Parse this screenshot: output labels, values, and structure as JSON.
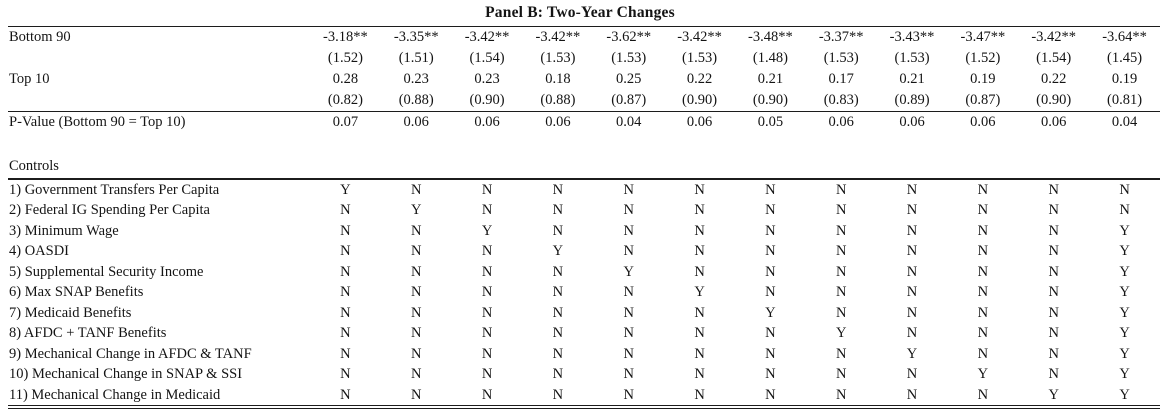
{
  "title": "Panel B: Two-Year Changes",
  "text_color": "#141414",
  "background_color": "#ffffff",
  "table": {
    "num_data_columns": 12,
    "rows": [
      {
        "type": "coef",
        "label": "Bottom 90",
        "values": [
          "-3.18**",
          "-3.35**",
          "-3.42**",
          "-3.42**",
          "-3.62**",
          "-3.42**",
          "-3.48**",
          "-3.37**",
          "-3.43**",
          "-3.47**",
          "-3.42**",
          "-3.64**"
        ]
      },
      {
        "type": "se",
        "label": "",
        "values": [
          "(1.52)",
          "(1.51)",
          "(1.54)",
          "(1.53)",
          "(1.53)",
          "(1.53)",
          "(1.48)",
          "(1.53)",
          "(1.53)",
          "(1.52)",
          "(1.54)",
          "(1.45)"
        ]
      },
      {
        "type": "coef",
        "label": "Top 10",
        "values": [
          "0.28",
          "0.23",
          "0.23",
          "0.18",
          "0.25",
          "0.22",
          "0.21",
          "0.17",
          "0.21",
          "0.19",
          "0.22",
          "0.19"
        ]
      },
      {
        "type": "se",
        "label": "",
        "values": [
          "(0.82)",
          "(0.88)",
          "(0.90)",
          "(0.88)",
          "(0.87)",
          "(0.90)",
          "(0.90)",
          "(0.83)",
          "(0.89)",
          "(0.87)",
          "(0.90)",
          "(0.81)"
        ]
      },
      {
        "type": "pvalue",
        "label": "P-Value (Bottom 90 = Top 10)",
        "values": [
          "0.07",
          "0.06",
          "0.06",
          "0.06",
          "0.04",
          "0.06",
          "0.05",
          "0.06",
          "0.06",
          "0.06",
          "0.06",
          "0.04"
        ]
      },
      {
        "type": "spacer",
        "label": ""
      },
      {
        "type": "section",
        "label": "Controls"
      },
      {
        "type": "control",
        "label": "1) Government Transfers Per Capita",
        "values": [
          "Y",
          "N",
          "N",
          "N",
          "N",
          "N",
          "N",
          "N",
          "N",
          "N",
          "N",
          "N"
        ]
      },
      {
        "type": "control",
        "label": "2) Federal IG Spending Per Capita",
        "values": [
          "N",
          "Y",
          "N",
          "N",
          "N",
          "N",
          "N",
          "N",
          "N",
          "N",
          "N",
          "N"
        ]
      },
      {
        "type": "control",
        "label": "3) Minimum Wage",
        "values": [
          "N",
          "N",
          "Y",
          "N",
          "N",
          "N",
          "N",
          "N",
          "N",
          "N",
          "N",
          "Y"
        ]
      },
      {
        "type": "control",
        "label": "4) OASDI",
        "values": [
          "N",
          "N",
          "N",
          "Y",
          "N",
          "N",
          "N",
          "N",
          "N",
          "N",
          "N",
          "Y"
        ]
      },
      {
        "type": "control",
        "label": "5) Supplemental Security Income",
        "values": [
          "N",
          "N",
          "N",
          "N",
          "Y",
          "N",
          "N",
          "N",
          "N",
          "N",
          "N",
          "Y"
        ]
      },
      {
        "type": "control",
        "label": "6) Max SNAP Benefits",
        "values": [
          "N",
          "N",
          "N",
          "N",
          "N",
          "Y",
          "N",
          "N",
          "N",
          "N",
          "N",
          "Y"
        ]
      },
      {
        "type": "control",
        "label": "7) Medicaid Benefits",
        "values": [
          "N",
          "N",
          "N",
          "N",
          "N",
          "N",
          "Y",
          "N",
          "N",
          "N",
          "N",
          "Y"
        ]
      },
      {
        "type": "control",
        "label": "8) AFDC + TANF Benefits",
        "values": [
          "N",
          "N",
          "N",
          "N",
          "N",
          "N",
          "N",
          "Y",
          "N",
          "N",
          "N",
          "Y"
        ]
      },
      {
        "type": "control",
        "label": "9) Mechanical Change in AFDC & TANF",
        "values": [
          "N",
          "N",
          "N",
          "N",
          "N",
          "N",
          "N",
          "N",
          "Y",
          "N",
          "N",
          "Y"
        ]
      },
      {
        "type": "control",
        "label": "10) Mechanical Change in SNAP & SSI",
        "values": [
          "N",
          "N",
          "N",
          "N",
          "N",
          "N",
          "N",
          "N",
          "N",
          "Y",
          "N",
          "Y"
        ]
      },
      {
        "type": "control",
        "label": "11) Mechanical Change in Medicaid",
        "values": [
          "N",
          "N",
          "N",
          "N",
          "N",
          "N",
          "N",
          "N",
          "N",
          "N",
          "Y",
          "Y"
        ]
      }
    ]
  }
}
